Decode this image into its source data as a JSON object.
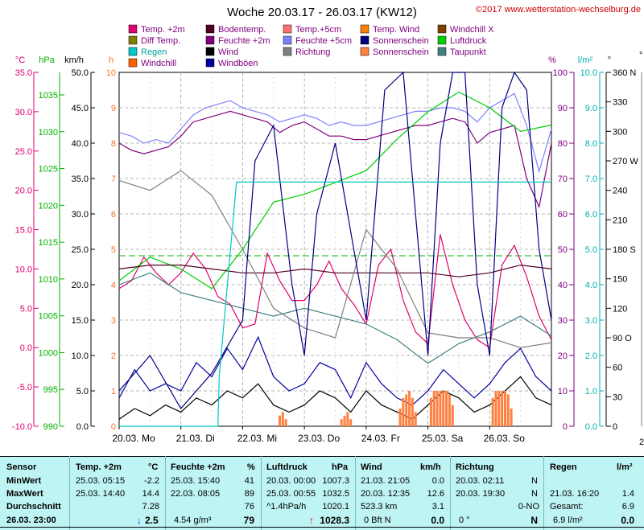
{
  "header": {
    "title": "Woche 20.03.17 - 26.03.17 (KW12)",
    "copyright": "©2017 www.wetterstation-wechselburg.de"
  },
  "legend": [
    {
      "label": "Temp. +2m",
      "color": "#e0006e"
    },
    {
      "label": "Bodentemp.",
      "color": "#500020"
    },
    {
      "label": "Temp.+5cm",
      "color": "#ff7070"
    },
    {
      "label": "Temp. Wind",
      "color": "#ff8000"
    },
    {
      "label": "Windchill X",
      "color": "#804000"
    },
    {
      "label": "Diff Temp.",
      "color": "#808000"
    },
    {
      "label": "Feuchte +2m",
      "color": "#800080"
    },
    {
      "label": "Feuchte +5cm",
      "color": "#8080ff"
    },
    {
      "label": "Sonnenschein",
      "color": "#000080"
    },
    {
      "label": "Luftdruck",
      "color": "#00d000"
    },
    {
      "label": "Regen",
      "color": "#00c8c8"
    },
    {
      "label": "Wind",
      "color": "#000000"
    },
    {
      "label": "Richtung",
      "color": "#808080"
    },
    {
      "label": "Sonnenschein",
      "color": "#ff8040"
    },
    {
      "label": "Taupunkt",
      "color": "#408080"
    },
    {
      "label": "Windchill",
      "color": "#ff6000"
    },
    {
      "label": "Windböen",
      "color": "#0000a0"
    }
  ],
  "axes": {
    "temp": {
      "unit": "°C",
      "ticks": [
        "35.0",
        "30.0",
        "25.0",
        "20.0",
        "15.0",
        "10.0",
        "5.0",
        "0.0",
        "-5.0",
        "-10.0"
      ],
      "color": "#e0006e"
    },
    "pressure": {
      "unit": "hPa",
      "ticks": [
        "1035",
        "1030",
        "1025",
        "1020",
        "1015",
        "1010",
        "1005",
        "1000",
        "995",
        "990"
      ],
      "color": "#00b000"
    },
    "wind": {
      "unit": "km/h",
      "ticks": [
        "50.0",
        "45.0",
        "40.0",
        "35.0",
        "30.0",
        "25.0",
        "20.0",
        "15.0",
        "10.0",
        "5.0",
        "0.0"
      ],
      "color": "#000000"
    },
    "sun": {
      "unit": "h",
      "ticks": [
        "10",
        "9",
        "8",
        "7",
        "6",
        "5",
        "4",
        "3",
        "2",
        "1",
        "0"
      ],
      "color": "#ff7020"
    },
    "humidity": {
      "unit": "%",
      "ticks": [
        "100",
        "90",
        "80",
        "70",
        "60",
        "50",
        "40",
        "30",
        "20",
        "10",
        "0"
      ],
      "color": "#800080"
    },
    "rain": {
      "unit": "l/m²",
      "ticks": [
        "10.0",
        "9.0",
        "8.0",
        "7.0",
        "6.0",
        "5.0",
        "4.0",
        "3.0",
        "2.0",
        "1.0",
        "0.0"
      ],
      "color": "#00b0b0"
    },
    "direction": {
      "unit": "°",
      "ticks": [
        "360 N",
        "330",
        "300",
        "270 W",
        "240",
        "210",
        "180 S",
        "150",
        "120",
        "90 O",
        "60",
        "30",
        "0"
      ],
      "color": "#000000"
    }
  },
  "x_labels": [
    "20.03. Mo",
    "21.03. Di",
    "22.03. Mi",
    "23.03. Do",
    "24.03. Fr",
    "25.03. Sa",
    "26.03. So"
  ],
  "right_partial": {
    "top": "°",
    "bottom": "26"
  },
  "chart_data": {
    "type": "line",
    "title": "Woche 20.03.17 - 26.03.17 (KW12)",
    "x_ticks": [
      "20.03. Mo",
      "21.03. Di",
      "22.03. Mi",
      "23.03. Do",
      "24.03. Fr",
      "25.03. Sa",
      "26.03. So"
    ],
    "x_range_days": [
      0,
      7
    ],
    "series": [
      {
        "name": "Feuchte +2m",
        "axis": "humidity",
        "color": "#800080",
        "x": [
          0,
          0.2,
          0.4,
          0.6,
          0.8,
          1.0,
          1.2,
          1.4,
          1.6,
          1.8,
          2.0,
          2.2,
          2.4,
          2.6,
          2.8,
          3.0,
          3.2,
          3.4,
          3.6,
          3.8,
          4.0,
          4.2,
          4.4,
          4.6,
          4.8,
          5.0,
          5.2,
          5.4,
          5.6,
          5.8,
          6.0,
          6.2,
          6.4,
          6.6,
          6.8,
          7.0
        ],
        "y": [
          80,
          78,
          77,
          78,
          79,
          82,
          86,
          87,
          88,
          89,
          88,
          87,
          86,
          83,
          85,
          86,
          84,
          82,
          82,
          81,
          81,
          82,
          83,
          84,
          85,
          85,
          86,
          87,
          86,
          80,
          83,
          84,
          85,
          70,
          62,
          80
        ]
      },
      {
        "name": "Feuchte +5cm",
        "axis": "humidity",
        "color": "#8080ff",
        "x": [
          0,
          0.2,
          0.4,
          0.6,
          0.8,
          1.0,
          1.2,
          1.4,
          1.6,
          1.8,
          2.0,
          2.2,
          2.4,
          2.6,
          2.8,
          3.0,
          3.2,
          3.4,
          3.6,
          3.8,
          4.0,
          4.2,
          4.4,
          4.6,
          4.8,
          5.0,
          5.2,
          5.4,
          5.6,
          5.8,
          6.0,
          6.2,
          6.4,
          6.6,
          6.8,
          7.0
        ],
        "y": [
          83,
          82,
          80,
          81,
          80,
          84,
          88,
          90,
          91,
          92,
          90,
          89,
          88,
          86,
          87,
          88,
          87,
          85,
          86,
          85,
          85,
          86,
          87,
          88,
          89,
          89,
          90,
          90,
          89,
          86,
          90,
          92,
          94,
          85,
          72,
          84
        ]
      },
      {
        "name": "Temp. +2m",
        "axis": "temp",
        "color": "#e0006e",
        "x": [
          0,
          0.2,
          0.4,
          0.6,
          0.8,
          1.0,
          1.2,
          1.4,
          1.6,
          1.8,
          2.0,
          2.2,
          2.4,
          2.6,
          2.8,
          3.0,
          3.2,
          3.4,
          3.6,
          3.8,
          4.0,
          4.2,
          4.4,
          4.6,
          4.8,
          5.0,
          5.2,
          5.4,
          5.6,
          5.8,
          6.0,
          6.2,
          6.4,
          6.6,
          6.8,
          7.0
        ],
        "y": [
          7.5,
          8.5,
          11.5,
          9.5,
          8.0,
          9.5,
          12.0,
          10.0,
          6.5,
          5.5,
          2.5,
          3.0,
          12.0,
          8.5,
          6.0,
          6.0,
          8.0,
          11.0,
          7.5,
          5.5,
          3.0,
          10.5,
          12.5,
          6.0,
          2.0,
          0.5,
          14.4,
          8.0,
          3.5,
          1.0,
          0.0,
          10.5,
          13.0,
          9.0,
          4.0,
          1.0
        ]
      },
      {
        "name": "Luftdruck",
        "axis": "pressure",
        "color": "#00d000",
        "x": [
          0,
          0.5,
          1.0,
          1.5,
          2.0,
          2.5,
          3.0,
          3.5,
          4.0,
          4.5,
          5.0,
          5.5,
          6.0,
          6.5,
          7.0
        ],
        "y": [
          1008.5,
          1011.5,
          1010.0,
          1007.5,
          1012.5,
          1018.5,
          1019.5,
          1021.0,
          1022.5,
          1026.5,
          1030.0,
          1032.5,
          1030.5,
          1027.5,
          1028.3
        ]
      },
      {
        "name": "Bodentemp.",
        "axis": "temp",
        "color": "#500020",
        "x": [
          0,
          0.5,
          1.0,
          1.5,
          2.0,
          2.5,
          3.0,
          3.5,
          4.0,
          4.5,
          5.0,
          5.5,
          6.0,
          6.5,
          7.0
        ],
        "y": [
          10.0,
          10.5,
          10.5,
          10.0,
          9.5,
          9.5,
          10.0,
          9.5,
          9.5,
          9.5,
          9.5,
          9.0,
          9.5,
          10.5,
          10.0
        ]
      },
      {
        "name": "Taupunkt",
        "axis": "temp",
        "color": "#408080",
        "x": [
          0,
          0.5,
          1.0,
          1.5,
          2.0,
          2.5,
          3.0,
          3.5,
          4.0,
          4.5,
          5.0,
          5.5,
          6.0,
          6.5,
          7.0
        ],
        "y": [
          8.0,
          9.5,
          7.0,
          6.0,
          5.0,
          4.0,
          5.0,
          4.0,
          3.0,
          1.0,
          -2.0,
          0.5,
          2.0,
          4.0,
          1.5
        ]
      },
      {
        "name": "Wind",
        "axis": "wind",
        "color": "#000000",
        "x": [
          0,
          0.25,
          0.5,
          0.75,
          1.0,
          1.25,
          1.5,
          1.75,
          2.0,
          2.25,
          2.5,
          2.75,
          3.0,
          3.25,
          3.5,
          3.75,
          4.0,
          4.25,
          4.5,
          4.75,
          5.0,
          5.25,
          5.5,
          5.75,
          6.0,
          6.25,
          6.5,
          6.75,
          7.0
        ],
        "y": [
          1.0,
          2.5,
          1.5,
          3.0,
          2.0,
          4.0,
          3.0,
          5.0,
          4.0,
          6.0,
          3.0,
          2.0,
          3.0,
          5.0,
          4.0,
          2.0,
          5.0,
          3.0,
          2.0,
          1.0,
          3.0,
          5.0,
          4.0,
          2.0,
          3.0,
          5.0,
          7.0,
          4.0,
          3.0
        ]
      },
      {
        "name": "Windböen",
        "axis": "wind",
        "color": "#0000a0",
        "x": [
          0,
          0.25,
          0.5,
          0.75,
          1.0,
          1.25,
          1.5,
          1.75,
          2.0,
          2.25,
          2.5,
          2.75,
          3.0,
          3.25,
          3.5,
          3.75,
          4.0,
          4.25,
          4.5,
          4.75,
          5.0,
          5.25,
          5.5,
          5.75,
          6.0,
          6.25,
          6.5,
          6.75,
          7.0
        ],
        "y": [
          4.0,
          8.0,
          5.0,
          6.0,
          5.0,
          9.0,
          7.0,
          11.0,
          8.0,
          12.6,
          7.0,
          5.0,
          6.0,
          9.0,
          8.0,
          4.0,
          9.0,
          6.0,
          4.0,
          3.0,
          5.0,
          8.0,
          6.0,
          4.0,
          6.0,
          9.0,
          11.0,
          7.0,
          5.0
        ]
      },
      {
        "name": "Richtung",
        "axis": "direction",
        "color": "#808080",
        "x": [
          0,
          0.5,
          1.0,
          1.5,
          2.0,
          2.5,
          3.0,
          3.5,
          4.0,
          4.5,
          5.0,
          5.5,
          6.0,
          6.5,
          7.0
        ],
        "y": [
          250,
          240,
          260,
          235,
          180,
          120,
          100,
          90,
          200,
          160,
          95,
          90,
          90,
          80,
          85
        ]
      },
      {
        "name": "Sonnenschein",
        "axis": "sun",
        "color": "#000080",
        "x": [
          0,
          0.5,
          1.0,
          1.5,
          2.0,
          2.2,
          2.5,
          2.8,
          3.0,
          3.2,
          3.5,
          3.8,
          4.0,
          4.3,
          4.6,
          4.8,
          5.0,
          5.2,
          5.4,
          5.6,
          5.8,
          6.0,
          6.2,
          6.4,
          6.6,
          6.8,
          7.0
        ],
        "y": [
          1.0,
          2.0,
          0.5,
          1.5,
          3.0,
          7.5,
          8.5,
          4.0,
          2.0,
          6.0,
          8.0,
          5.0,
          3.0,
          9.5,
          10.0,
          6.0,
          2.0,
          8.0,
          10.0,
          10.0,
          4.0,
          2.0,
          9.0,
          10.0,
          9.5,
          5.0,
          3.0
        ]
      },
      {
        "name": "Regen",
        "axis": "rain",
        "color": "#00c8c8",
        "x": [
          0,
          1.6,
          1.62,
          1.9,
          2.0,
          7.0
        ],
        "y": [
          0.0,
          0.0,
          1.4,
          6.9,
          6.9,
          6.9
        ]
      },
      {
        "name": "Sonnenschein",
        "axis": "sun",
        "color": "#ff8040",
        "type": "bar",
        "x": [
          2.6,
          2.65,
          2.7,
          3.6,
          3.65,
          3.7,
          3.75,
          4.55,
          4.6,
          4.65,
          4.7,
          4.75,
          4.8,
          5.05,
          5.1,
          5.15,
          5.2,
          5.25,
          5.3,
          5.35,
          5.4,
          6.05,
          6.1,
          6.15,
          6.2,
          6.25,
          6.3,
          6.35
        ],
        "y": [
          0.3,
          0.4,
          0.2,
          0.2,
          0.3,
          0.4,
          0.2,
          0.5,
          0.8,
          0.9,
          1.0,
          0.8,
          0.4,
          0.8,
          1.0,
          1.0,
          1.0,
          1.0,
          1.0,
          0.9,
          0.6,
          0.8,
          1.0,
          1.0,
          1.0,
          1.0,
          0.9,
          0.5
        ]
      }
    ]
  },
  "stats": {
    "headers": {
      "sensor": "Sensor",
      "temp": "Temp. +2m",
      "temp_unit": "°C",
      "feuchte": "Feuchte +2m",
      "feuchte_unit": "%",
      "druck": "Luftdruck",
      "druck_unit": "hPa",
      "wind": "Wind",
      "wind_unit": "km/h",
      "richtung": "Richtung",
      "regen": "Regen",
      "regen_unit": "l/m²"
    },
    "row_labels": {
      "min": "MinWert",
      "max": "MaxWert",
      "avg": "Durchschnitt",
      "current": "26.03. 23:00"
    },
    "temp": {
      "min_time": "25.03. 05:15",
      "min_val": "-2.2",
      "max_time": "25.03. 14:40",
      "max_val": "14.4",
      "avg_val": "7.28",
      "current_arrow": "↓",
      "current": "2.5"
    },
    "feuchte": {
      "min_time": "25.03. 15:40",
      "min_val": "41",
      "max_time": "22.03. 08:05",
      "max_val": "89",
      "avg_val": "76",
      "abs_hum": "4.54 g/m³",
      "current": "79"
    },
    "druck": {
      "min_time": "20.03. 00:00",
      "min_val": "1007.3",
      "max_time": "25.03. 00:55",
      "max_val": "1032.5",
      "avg_label": "^1.4hPa/h",
      "avg_val": "1020.1",
      "current_arrow": "↑",
      "current": "1028.3"
    },
    "wind": {
      "min_time": "21.03. 21:05",
      "min_val": "0.0",
      "max_time": "20.03. 12:35",
      "max_val": "12.6",
      "avg_label": "523.3 km",
      "avg_val": "3.1",
      "current_label": "0 Bft N",
      "current": "0.0"
    },
    "richtung": {
      "min_time": "20.03. 02:11",
      "min_val": "N",
      "max_time": "20.03. 19:30",
      "max_val": "N",
      "avg_val": "0-NO",
      "current_label": "0 °",
      "current": "N"
    },
    "regen": {
      "max_time": "21.03. 16:20",
      "max_val": "1.4",
      "total_label": "Gesamt:",
      "total_val": "6.9",
      "current_label": "6.9 l/m²",
      "current": "0.0"
    }
  }
}
